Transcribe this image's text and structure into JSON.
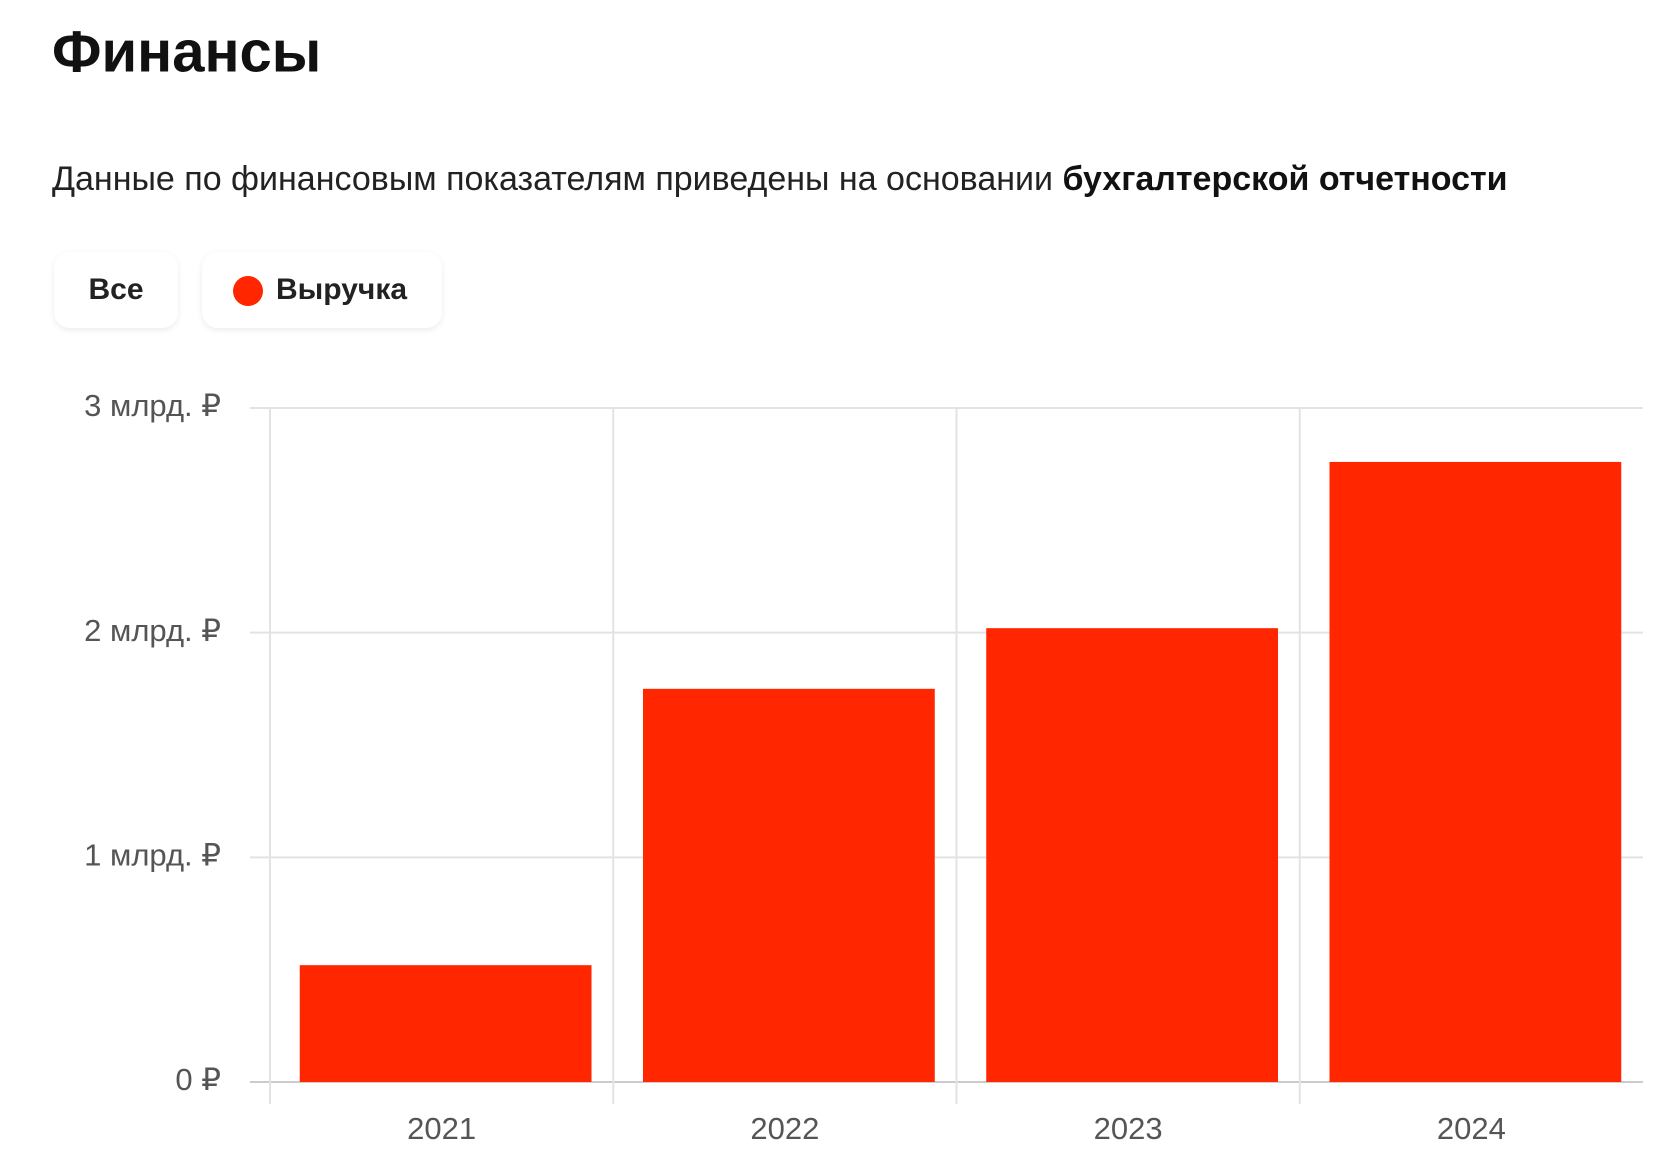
{
  "chart_data": {
    "type": "bar",
    "title": "Финансы",
    "subtitle": "Данные по финансовым показателям приведены на основании",
    "subtitle_bold": "бухгалтерской отчетности",
    "filter_all": "Все",
    "categories": [
      "2021",
      "2022",
      "2023",
      "2024"
    ],
    "series": [
      {
        "name": "Выручка",
        "color": "#ff2600",
        "values": [
          0.52,
          1.75,
          2.02,
          2.76
        ]
      }
    ],
    "ylim": [
      0,
      3
    ],
    "yticks": [
      {
        "value": 0,
        "label": "0 ₽"
      },
      {
        "value": 1,
        "label": "1 млрд. ₽"
      },
      {
        "value": 2,
        "label": "2 млрд. ₽"
      },
      {
        "value": 3,
        "label": "3 млрд. ₽"
      }
    ],
    "grid": true
  }
}
